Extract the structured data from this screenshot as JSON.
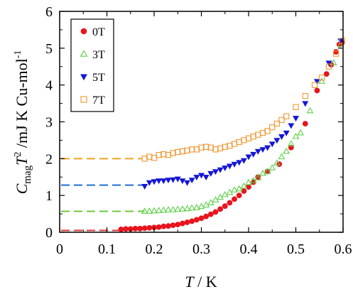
{
  "chart_data": {
    "type": "scatter",
    "xlabel": {
      "italic": "T",
      "rest": " / K"
    },
    "ylabel": {
      "italic": "C",
      "sub": "mag",
      "italic2": "T",
      "sup": "2",
      "rest": " /mJ K Cu-mol",
      "sup2": "-1"
    },
    "xlim": [
      0,
      0.6
    ],
    "ylim": [
      0,
      6
    ],
    "xticks": [
      "0",
      "0.1",
      "0.2",
      "0.3",
      "0.4",
      "0.5",
      "0.6"
    ],
    "yticks": [
      "0",
      "1",
      "2",
      "3",
      "4",
      "5",
      "6"
    ],
    "legend_position": "top-left",
    "series": [
      {
        "name": "0T",
        "marker": "circle",
        "filled": true,
        "color": "#e8141e",
        "dash_color": "#e03a3a",
        "dash_y": 0.05,
        "dash_x": [
          0,
          0.14
        ],
        "x": [
          0.13,
          0.14,
          0.15,
          0.16,
          0.17,
          0.18,
          0.19,
          0.2,
          0.21,
          0.22,
          0.23,
          0.24,
          0.25,
          0.26,
          0.27,
          0.28,
          0.29,
          0.3,
          0.31,
          0.32,
          0.33,
          0.34,
          0.35,
          0.36,
          0.37,
          0.38,
          0.39,
          0.4,
          0.41,
          0.42,
          0.44,
          0.465,
          0.49,
          0.52,
          0.545,
          0.565,
          0.575,
          0.585,
          0.592,
          0.598
        ],
        "y": [
          0.08,
          0.09,
          0.09,
          0.1,
          0.1,
          0.11,
          0.12,
          0.13,
          0.14,
          0.16,
          0.17,
          0.19,
          0.21,
          0.24,
          0.27,
          0.3,
          0.34,
          0.38,
          0.43,
          0.49,
          0.55,
          0.63,
          0.71,
          0.8,
          0.9,
          1.0,
          1.12,
          1.23,
          1.36,
          1.5,
          1.65,
          1.85,
          2.3,
          2.95,
          3.85,
          4.3,
          4.55,
          4.9,
          5.1,
          5.15
        ]
      },
      {
        "name": "3T",
        "marker": "triangle-up",
        "filled": false,
        "color": "#5ccf48",
        "dash_color": "#6fc83c",
        "dash_y": 0.57,
        "dash_x": [
          0,
          0.18
        ],
        "x": [
          0.18,
          0.19,
          0.2,
          0.21,
          0.22,
          0.23,
          0.24,
          0.25,
          0.26,
          0.27,
          0.28,
          0.29,
          0.3,
          0.31,
          0.32,
          0.33,
          0.34,
          0.35,
          0.36,
          0.37,
          0.38,
          0.39,
          0.4,
          0.41,
          0.42,
          0.43,
          0.44,
          0.45,
          0.46,
          0.47,
          0.48,
          0.49,
          0.5,
          0.51,
          0.53,
          0.555,
          0.58,
          0.595
        ],
        "y": [
          0.57,
          0.57,
          0.58,
          0.59,
          0.6,
          0.61,
          0.61,
          0.62,
          0.63,
          0.64,
          0.66,
          0.67,
          0.7,
          0.74,
          0.8,
          0.88,
          0.95,
          1.02,
          1.08,
          1.15,
          1.18,
          1.25,
          1.35,
          1.4,
          1.48,
          1.6,
          1.65,
          1.75,
          1.88,
          2.05,
          2.2,
          2.4,
          2.6,
          2.7,
          3.3,
          4.1,
          4.6,
          5.1
        ]
      },
      {
        "name": "5T",
        "marker": "triangle-down",
        "filled": true,
        "color": "#1515d6",
        "dash_color": "#1c6fd0",
        "dash_y": 1.28,
        "dash_x": [
          0,
          0.175
        ],
        "x": [
          0.18,
          0.19,
          0.2,
          0.21,
          0.22,
          0.23,
          0.24,
          0.25,
          0.26,
          0.27,
          0.28,
          0.29,
          0.3,
          0.31,
          0.32,
          0.33,
          0.34,
          0.35,
          0.36,
          0.37,
          0.38,
          0.39,
          0.4,
          0.41,
          0.42,
          0.43,
          0.44,
          0.45,
          0.46,
          0.47,
          0.48,
          0.49,
          0.5,
          0.52,
          0.545,
          0.57,
          0.595
        ],
        "y": [
          1.25,
          1.35,
          1.38,
          1.4,
          1.4,
          1.42,
          1.43,
          1.45,
          1.4,
          1.35,
          1.42,
          1.5,
          1.55,
          1.5,
          1.6,
          1.65,
          1.7,
          1.75,
          1.8,
          1.85,
          1.9,
          1.95,
          2.05,
          2.12,
          2.2,
          2.25,
          2.3,
          2.4,
          2.5,
          2.6,
          2.7,
          2.9,
          3.1,
          3.5,
          4.1,
          4.6,
          5.2
        ]
      },
      {
        "name": "7T",
        "marker": "square",
        "filled": false,
        "color": "#f0962e",
        "dash_color": "#f2a31e",
        "dash_y": 2.0,
        "dash_x": [
          0,
          0.175
        ],
        "x": [
          0.18,
          0.19,
          0.2,
          0.21,
          0.22,
          0.23,
          0.24,
          0.25,
          0.26,
          0.27,
          0.28,
          0.29,
          0.3,
          0.31,
          0.32,
          0.33,
          0.34,
          0.35,
          0.36,
          0.37,
          0.38,
          0.39,
          0.4,
          0.41,
          0.42,
          0.43,
          0.44,
          0.45,
          0.46,
          0.47,
          0.48,
          0.5,
          0.52,
          0.54,
          0.555,
          0.57,
          0.585,
          0.598
        ],
        "y": [
          2.0,
          2.05,
          2.02,
          2.1,
          2.12,
          2.1,
          2.15,
          2.18,
          2.2,
          2.22,
          2.25,
          2.25,
          2.3,
          2.32,
          2.3,
          2.25,
          2.28,
          2.32,
          2.35,
          2.4,
          2.45,
          2.5,
          2.55,
          2.6,
          2.65,
          2.7,
          2.75,
          2.85,
          2.95,
          3.05,
          3.15,
          3.4,
          3.7,
          4.0,
          4.2,
          4.5,
          4.85,
          5.2
        ]
      }
    ]
  }
}
